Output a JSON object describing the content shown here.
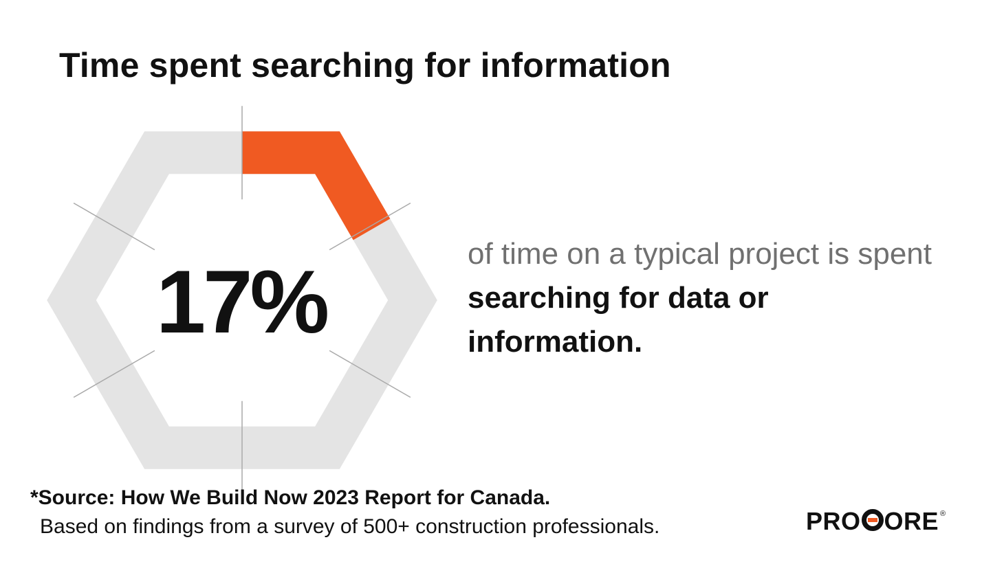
{
  "page": {
    "title": "Time spent searching for information",
    "description_plain": "of time on a typical project is spent",
    "description_bold": "searching for data or information.",
    "source": "*Source: How We Build Now 2023 Report for Canada.",
    "note": "Based on findings from a survey of 500+ construction professionals.",
    "logo": {
      "text_before": "PRO",
      "text_after": "ORE",
      "mark": "C",
      "registered": "®"
    }
  },
  "chart_data": {
    "type": "hexagon-progress",
    "value_label": "17%",
    "value": 17,
    "max": 100,
    "colors": {
      "filled": "#f05a22",
      "track": "#e4e4e4",
      "ticks": "#a9a9a9"
    }
  }
}
